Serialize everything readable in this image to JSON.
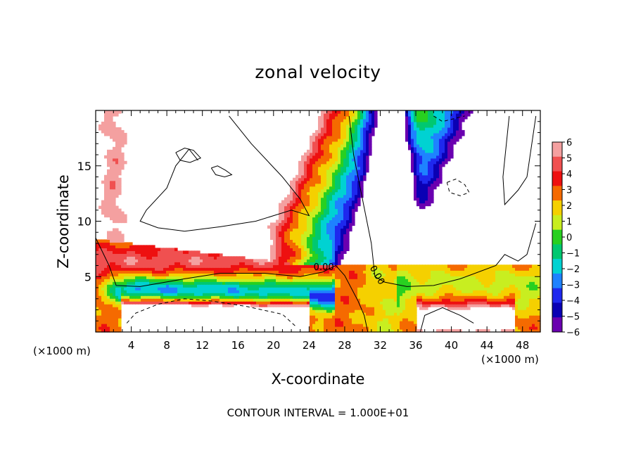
{
  "chart_data": {
    "type": "heatmap",
    "title": "zonal velocity",
    "xlabel": "X-coordinate",
    "ylabel": "Z-coordinate",
    "x_scale_label": "(×1000 m)",
    "x_scale_label_right": "(×1000 m)",
    "xlim": [
      0,
      50
    ],
    "ylim": [
      0,
      20
    ],
    "x_ticks": [
      4,
      8,
      12,
      16,
      20,
      24,
      28,
      32,
      36,
      40,
      44,
      48
    ],
    "y_ticks": [
      5,
      10,
      15
    ],
    "colorbar": {
      "ticks": [
        6,
        5,
        4,
        3,
        2,
        1,
        0,
        -1,
        -2,
        -3,
        -4,
        -5,
        -6
      ],
      "labels": [
        "6",
        "5",
        "4",
        "3",
        "2",
        "1",
        "0",
        "−1",
        "−2",
        "−3",
        "−4",
        "−5",
        "−6"
      ],
      "colors": [
        "#f4a0a0",
        "#f05050",
        "#ee1010",
        "#f56a00",
        "#f5d000",
        "#c8ee20",
        "#28d020",
        "#00c870",
        "#00d2d2",
        "#1e82ff",
        "#1e28ee",
        "#0a00b4",
        "#6a00b0"
      ]
    },
    "contour_labels": [
      "0.00",
      "0.00"
    ],
    "footer": "CONTOUR INTERVAL = 1.000E+01"
  }
}
